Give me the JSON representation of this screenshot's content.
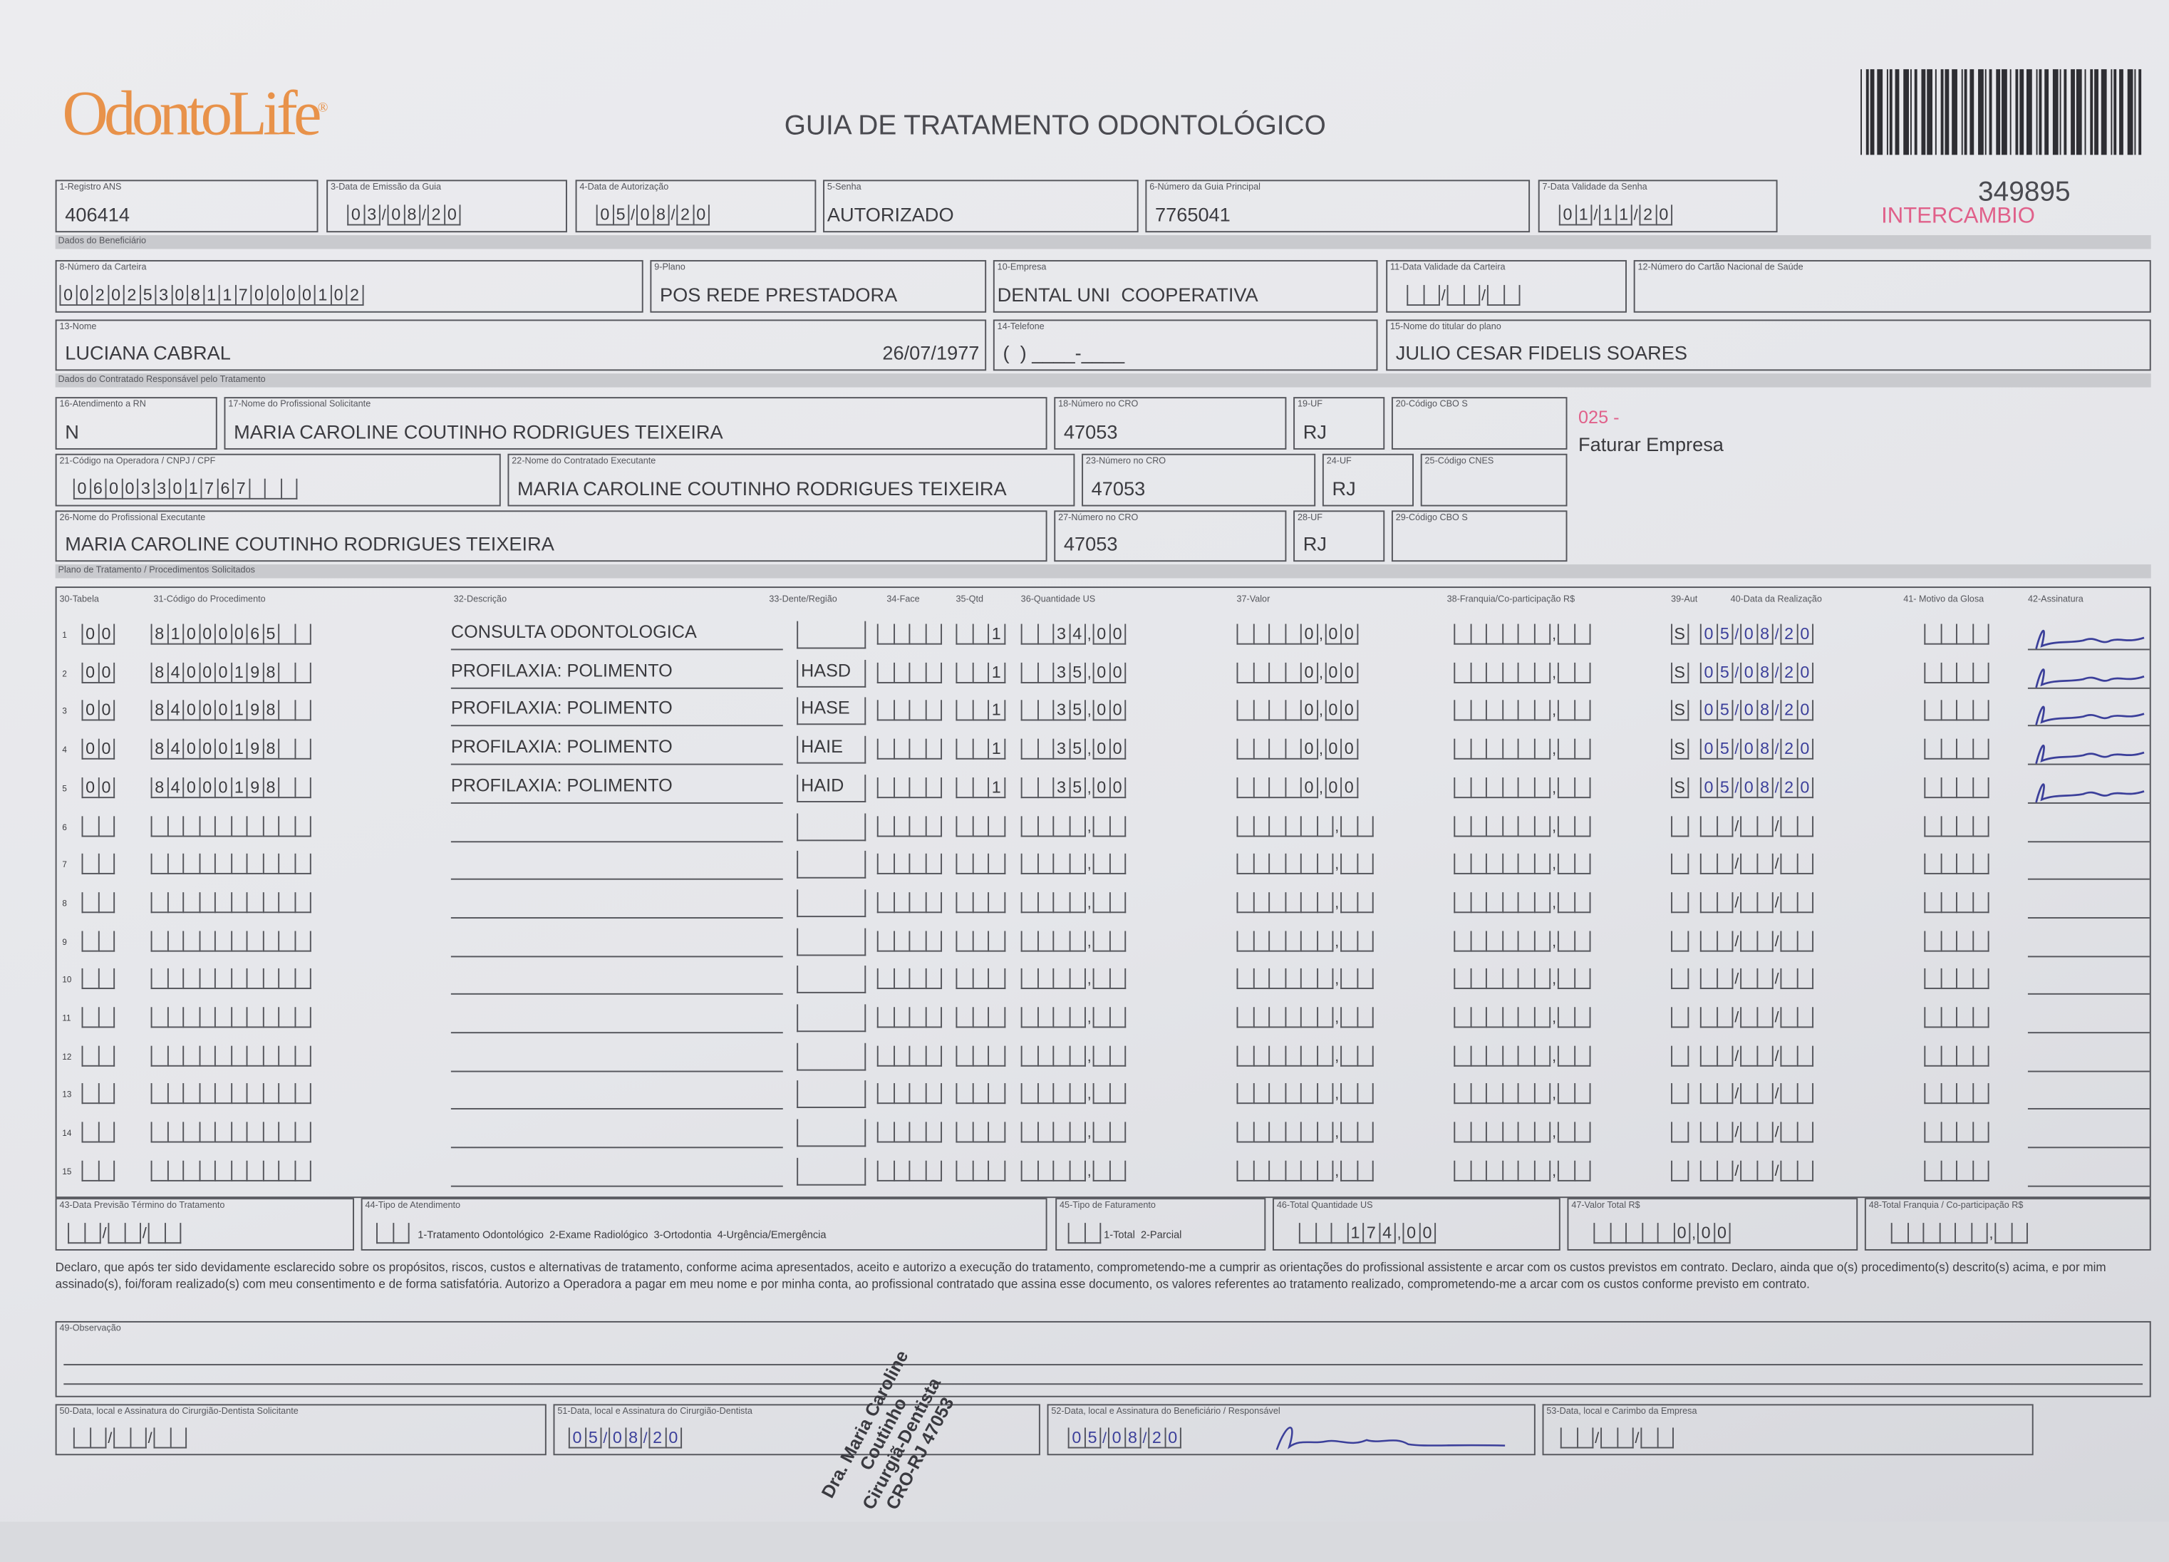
{
  "logo": {
    "text": "OdontoLife",
    "color": "#e8924a"
  },
  "title": "GUIA DE TRATAMENTO ODONTOLÓGICO",
  "guide_number": "349895",
  "intercambio": "INTERCAMBIO",
  "accent_pink": "#e0608a",
  "header": {
    "registro_ans": {
      "label": "1-Registro ANS",
      "value": "406414"
    },
    "data_emissao": {
      "label": "3-Data de Emissão da Guia",
      "value": "03/08/20"
    },
    "data_autorizacao": {
      "label": "4-Data de Autorização",
      "value": "05/08/20"
    },
    "senha": {
      "label": "5-Senha",
      "value": "AUTORIZADO"
    },
    "guia_principal": {
      "label": "6-Número da Guia Principal",
      "value": "7765041"
    },
    "validade_senha": {
      "label": "7-Data Validade da Senha",
      "value": "01/11/20"
    }
  },
  "sections": {
    "beneficiario": "Dados do Beneficiário",
    "contratado": "Dados do Contratado Responsável pelo Tratamento",
    "plano": "Plano de Tratamento / Procedimentos Solicitados"
  },
  "beneficiario": {
    "carteira": {
      "label": "8-Número da Carteira",
      "value": "0020253081170000102"
    },
    "plano": {
      "label": "9-Plano",
      "value": "POS REDE PRESTADORA"
    },
    "empresa": {
      "label": "10-Empresa",
      "value": "DENTAL UNI  COOPERATIVA"
    },
    "validade_carteira": {
      "label": "11-Data Validade da Carteira",
      "value": "  /  /  "
    },
    "cartao_nacional": {
      "label": "12-Número do Cartão Nacional de Saúde",
      "value": ""
    },
    "nome": {
      "label": "13-Nome",
      "value": "LUCIANA CABRAL",
      "birth": "26/07/1977"
    },
    "telefone": {
      "label": "14-Telefone",
      "value": "(  ) ____-____"
    },
    "titular": {
      "label": "15-Nome do titular do plano",
      "value": "JULIO CESAR FIDELIS SOARES"
    }
  },
  "contratado": {
    "rn": {
      "label": "16-Atendimento a RN",
      "value": "N"
    },
    "solicitante": {
      "label": "17-Nome do Profissional Solicitante",
      "value": "MARIA CAROLINE COUTINHO RODRIGUES TEIXEIRA"
    },
    "cro18": {
      "label": "18-Número no CRO",
      "value": "47053"
    },
    "uf19": {
      "label": "19-UF",
      "value": "RJ"
    },
    "cbo20": {
      "label": "20-Código CBO S",
      "value": ""
    },
    "codigo_operadora": {
      "label": "21-Código na Operadora / CNPJ / CPF",
      "value": "06003301767   "
    },
    "executado": {
      "label": "22-Nome do Contratado Executante",
      "value": "MARIA CAROLINE COUTINHO RODRIGUES TEIXEIRA"
    },
    "cro23": {
      "label": "23-Número no CRO",
      "value": "47053"
    },
    "uf24": {
      "label": "24-UF",
      "value": "RJ"
    },
    "cnes25": {
      "label": "25-Código CNES",
      "value": ""
    },
    "executante": {
      "label": "26-Nome do Profissional Executante",
      "value": "MARIA CAROLINE COUTINHO RODRIGUES TEIXEIRA"
    },
    "cro27": {
      "label": "27-Número no CRO",
      "value": "47053"
    },
    "uf28": {
      "label": "28-UF",
      "value": "RJ"
    },
    "cbo29": {
      "label": "29-Código CBO S",
      "value": ""
    },
    "note_code": "025 -",
    "note_text": "Faturar Empresa"
  },
  "table": {
    "headers": [
      "30-Tabela",
      "31-Código do Procedimento",
      "32-Descrição",
      "33-Dente/Região",
      "34-Face",
      "35-Qtd",
      "36-Quantidade US",
      "37-Valor",
      "38-Franquia/Co-participação R$",
      "39-Aut",
      "40-Data da Realização",
      "41- Motivo da Glosa",
      "42-Assinatura"
    ],
    "rows": [
      {
        "n": "1",
        "tabela": "00",
        "codigo": "81000065  ",
        "descricao": "CONSULTA ODONTOLOGICA",
        "dente": "",
        "qtd": "1",
        "us": "  34,00",
        "valor": "    0,00",
        "aut": "S",
        "data": "05/08/20",
        "signed": true
      },
      {
        "n": "2",
        "tabela": "00",
        "codigo": "84000198  ",
        "descricao": "PROFILAXIA: POLIMENTO",
        "dente": "HASD",
        "qtd": "1",
        "us": "  35,00",
        "valor": "    0,00",
        "aut": "S",
        "data": "05/08/20",
        "signed": true
      },
      {
        "n": "3",
        "tabela": "00",
        "codigo": "84000198  ",
        "descricao": "PROFILAXIA: POLIMENTO",
        "dente": "HASE",
        "qtd": "1",
        "us": "  35,00",
        "valor": "    0,00",
        "aut": "S",
        "data": "05/08/20",
        "signed": true
      },
      {
        "n": "4",
        "tabela": "00",
        "codigo": "84000198  ",
        "descricao": "PROFILAXIA: POLIMENTO",
        "dente": "HAIE",
        "qtd": "1",
        "us": "  35,00",
        "valor": "    0,00",
        "aut": "S",
        "data": "05/08/20",
        "signed": true
      },
      {
        "n": "5",
        "tabela": "00",
        "codigo": "84000198  ",
        "descricao": "PROFILAXIA: POLIMENTO",
        "dente": "HAID",
        "qtd": "1",
        "us": "  35,00",
        "valor": "    0,00",
        "aut": "S",
        "data": "05/08/20",
        "signed": true
      },
      {
        "n": "6"
      },
      {
        "n": "7"
      },
      {
        "n": "8"
      },
      {
        "n": "9"
      },
      {
        "n": "10"
      },
      {
        "n": "11"
      },
      {
        "n": "12"
      },
      {
        "n": "13"
      },
      {
        "n": "14"
      },
      {
        "n": "15"
      }
    ]
  },
  "totals": {
    "previsao": {
      "label": "43-Data Previsão Término do Tratamento",
      "value": "  /  /  "
    },
    "tipo_atendimento": {
      "label": "44-Tipo de Atendimento",
      "options": "1-Tratamento Odontológico  2-Exame Radiológico  3-Ortodontia  4-Urgência/Emergência"
    },
    "tipo_faturamento": {
      "label": "45-Tipo de Faturamento",
      "options": "1-Total  2-Parcial"
    },
    "total_us": {
      "label": "46-Total Quantidade US",
      "value": "   174,00"
    },
    "valor_total": {
      "label": "47-Valor Total R$",
      "value": "     0,00"
    },
    "total_franquia": {
      "label": "48-Total Franquia / Co-participação R$",
      "value": "      ,  "
    }
  },
  "declaration": "Declaro, que após ter sido devidamente esclarecido sobre os propósitos, riscos, custos e alternativas de tratamento, conforme acima apresentados, aceito e autorizo a execução do tratamento, comprometendo-me a cumprir as orientações do profissional assistente e arcar com os custos previstos em contrato. Declaro, ainda que o(s) procedimento(s) descrito(s) acima, e por mim assinado(s), foi/foram realizado(s) com meu consentimento e de forma satisfatória. Autorizo a Operadora a pagar em meu nome e por minha conta, ao profissional contratado que assina esse documento, os valores referentes ao tratamento realizado, comprometendo-me a arcar com os custos conforme previsto em contrato.",
  "observacao": {
    "label": "49-Observação"
  },
  "signatures": {
    "solicitante": {
      "label": "50-Data, local e Assinatura do Cirurgião-Dentista Solicitante",
      "value": "  /  /  "
    },
    "dentista": {
      "label": "51-Data, local e Assinatura do Cirurgião-Dentista",
      "value": "05/08/20"
    },
    "beneficiario": {
      "label": "52-Data, local e Assinatura do Beneficiário / Responsável",
      "value": "05/08/20"
    },
    "empresa": {
      "label": "53-Data, local e Carimbo da Empresa",
      "value": "  /  /  "
    }
  },
  "stamp_lines": [
    "Dra. Maria Caroline Coutinho",
    "Cirurgiã-Dentista",
    "CRO-RJ 47053"
  ],
  "ink_color": "#3b3f9a"
}
